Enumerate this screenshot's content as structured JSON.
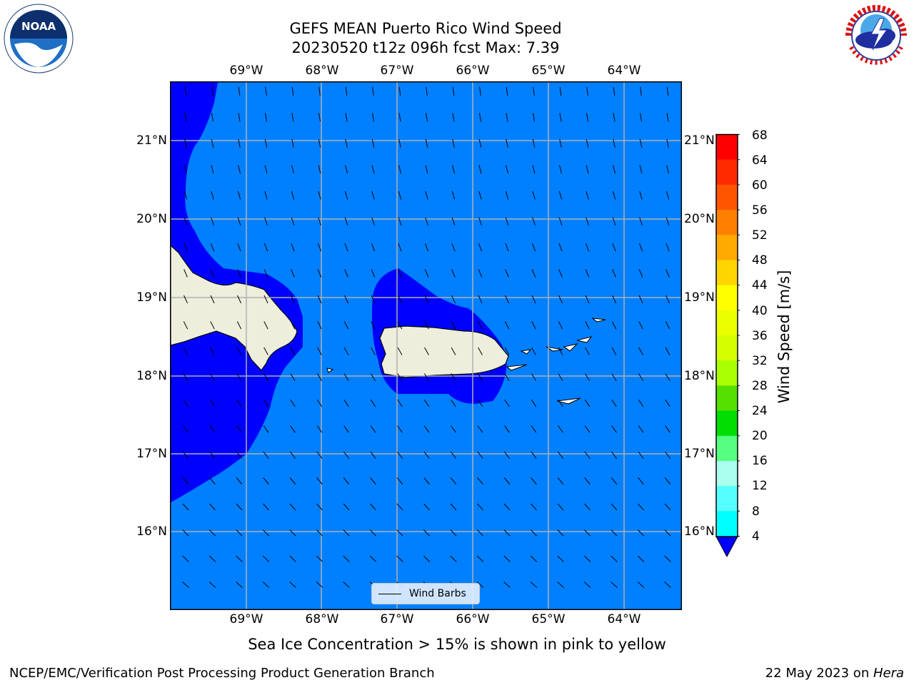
{
  "title": {
    "line1": "GEFS MEAN Puerto Rico Wind Speed",
    "line2": "20230520 t12z 096h fcst   Max: 7.39"
  },
  "logos": {
    "noaa_icon": "noaa-logo",
    "noaa_text": "NOAA",
    "nws_icon": "nws-logo"
  },
  "map": {
    "lon_labels": [
      "69°W",
      "68°W",
      "67°W",
      "66°W",
      "65°W",
      "64°W"
    ],
    "lat_labels": [
      "21°N",
      "20°N",
      "19°N",
      "18°N",
      "17°N",
      "16°N"
    ],
    "ocean_color": "#0080ff",
    "low_wind_color": "#0000ff",
    "land_color": "#eeeedd",
    "gridline_color": "#b0b0b0"
  },
  "legend": {
    "label": "Wind Barbs"
  },
  "colorbar": {
    "title": "Wind Speed [m/s]",
    "ticks": [
      "68",
      "64",
      "60",
      "56",
      "52",
      "48",
      "44",
      "40",
      "36",
      "32",
      "28",
      "24",
      "20",
      "16",
      "12",
      "8",
      "4"
    ],
    "colors_top_to_bottom": [
      "#ff0000",
      "#ff2a00",
      "#ff5500",
      "#ff8000",
      "#ffaa00",
      "#ffd500",
      "#ffff00",
      "#ecff00",
      "#d5ff00",
      "#aaff00",
      "#55e000",
      "#00dd00",
      "#55ff80",
      "#aaffee",
      "#55ffff",
      "#00ffff",
      "#00d5ff",
      "#0080ff"
    ],
    "under_color": "#0000ff"
  },
  "caption": "Sea Ice Concentration > 15% is shown in pink to yellow",
  "footer": {
    "left": "NCEP/EMC/Verification Post Processing Product Generation Branch",
    "date": "22 May 2023 on ",
    "machine": "Hera"
  }
}
